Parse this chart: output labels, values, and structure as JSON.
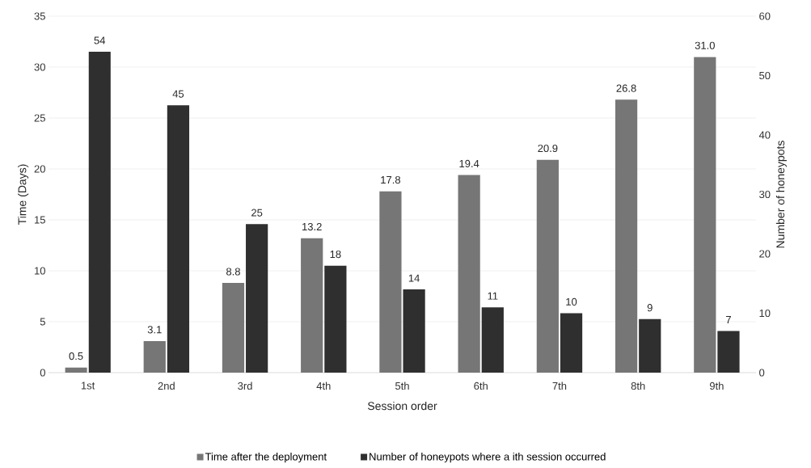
{
  "chart_data": {
    "type": "bar",
    "xlabel": "Session order",
    "ylabel": "Time (Days)",
    "y2label": "Number of honeypots",
    "categories": [
      "1st",
      "2nd",
      "3rd",
      "4th",
      "5th",
      "6th",
      "7th",
      "8th",
      "9th"
    ],
    "series": [
      {
        "name": "Time after the deployment",
        "color": "#767676",
        "values": [
          0.5,
          3.1,
          8.8,
          13.2,
          17.8,
          19.4,
          20.9,
          26.8,
          31.0
        ],
        "value_labels": [
          "0.5",
          "3.1",
          "8.8",
          "13.2",
          "17.8",
          "19.4",
          "20.9",
          "26.8",
          "31.0"
        ]
      },
      {
        "name": "Number of honeypots where a ith session occurred",
        "color": "#2f2f2f",
        "axis": "y2",
        "values": [
          54,
          45,
          25,
          18,
          14,
          11,
          10,
          9,
          7
        ],
        "value_labels": [
          "54",
          "45",
          "25",
          "18",
          "14",
          "11",
          "10",
          "9",
          "7"
        ]
      }
    ],
    "ylim": [
      0,
      35
    ],
    "yticks": [
      0,
      5,
      10,
      15,
      20,
      25,
      30,
      35
    ],
    "y2lim": [
      0,
      60
    ],
    "y2ticks": [
      0,
      10,
      20,
      30,
      40,
      50,
      60
    ],
    "grid": "y",
    "legend": "bottom"
  }
}
